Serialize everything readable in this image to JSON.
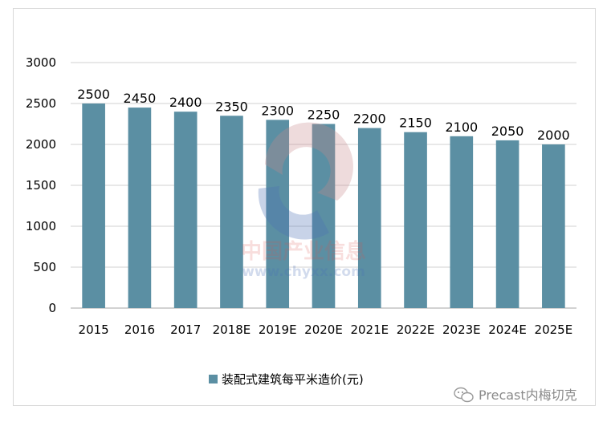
{
  "chart_data": {
    "type": "bar",
    "categories": [
      "2015",
      "2016",
      "2017",
      "2018E",
      "2019E",
      "2020E",
      "2021E",
      "2022E",
      "2023E",
      "2024E",
      "2025E"
    ],
    "series": [
      {
        "name": "装配式建筑每平米造价(元)",
        "values": [
          2500,
          2450,
          2400,
          2350,
          2300,
          2250,
          2200,
          2150,
          2100,
          2050,
          2000
        ]
      }
    ],
    "ylim": [
      0,
      3000
    ],
    "yticks": [
      0,
      500,
      1000,
      1500,
      2000,
      2500,
      3000
    ],
    "grid": true,
    "legend": "bottom",
    "data_labels": true
  },
  "colors": {
    "bar": "#5b8fa3",
    "grid": "#d0d0d0",
    "axis": "#a6a6a6"
  },
  "watermark": {
    "cn": "中国产业信息",
    "url": "www.chyxx.com"
  },
  "credit": {
    "icon": "wechat-icon",
    "text": "Precast内梅切克"
  }
}
